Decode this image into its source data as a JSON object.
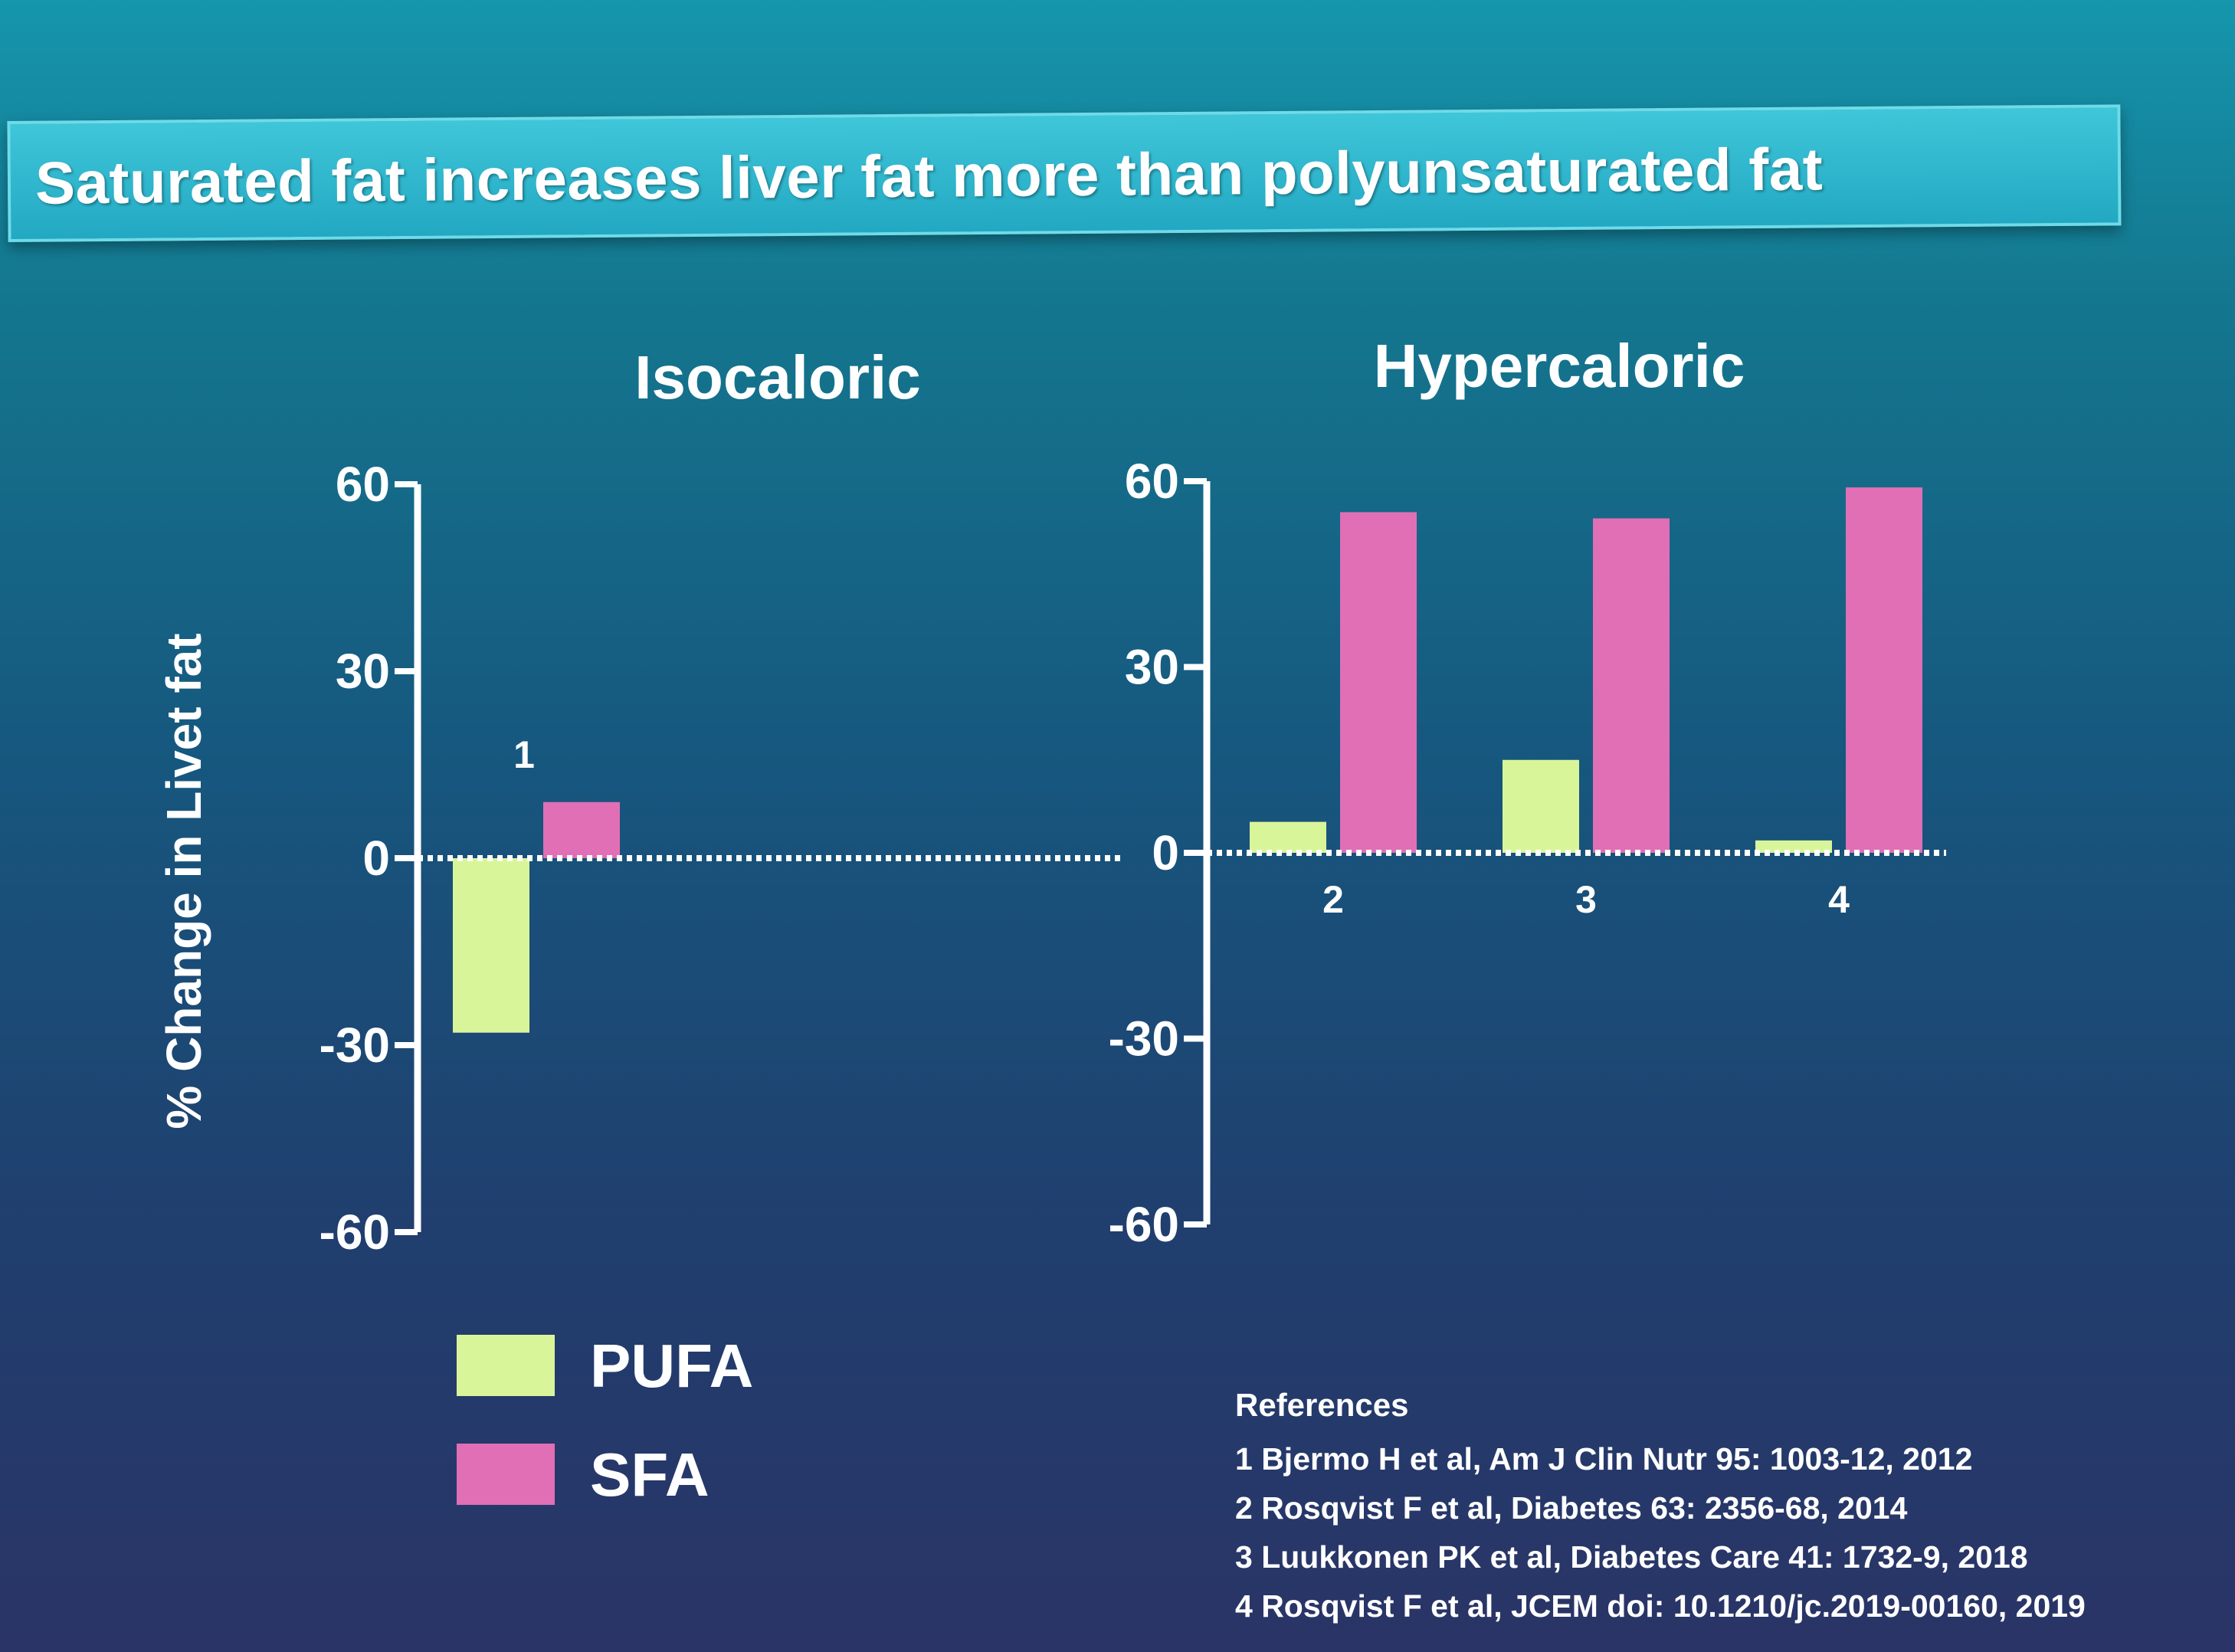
{
  "slide": {
    "title": "Saturated fat increases liver fat more than polyunsaturated fat"
  },
  "chart_data": {
    "type": "bar",
    "ylabel": "% Change in Livet fat",
    "ylim": [
      -60,
      60
    ],
    "yticks": [
      60,
      30,
      0,
      -30,
      -60
    ],
    "series_colors": {
      "PUFA": "#d9f59a",
      "SFA": "#e06fb6"
    },
    "legend": {
      "placement": "bottom-left",
      "entries": [
        {
          "name": "PUFA",
          "color": "#d9f59a"
        },
        {
          "name": "SFA",
          "color": "#e06fb6"
        }
      ]
    },
    "panels": [
      {
        "title": "Isocaloric",
        "categories": [
          "1"
        ],
        "category_label_position": "above",
        "series": [
          {
            "name": "PUFA",
            "values": [
              -28
            ]
          },
          {
            "name": "SFA",
            "values": [
              9
            ]
          }
        ]
      },
      {
        "title": "Hypercaloric",
        "categories": [
          "2",
          "3",
          "4"
        ],
        "category_label_position": "below",
        "series": [
          {
            "name": "PUFA",
            "values": [
              5,
              15,
              2
            ]
          },
          {
            "name": "SFA",
            "values": [
              55,
              54,
              59
            ]
          }
        ]
      }
    ]
  },
  "references": {
    "heading": "References",
    "items": [
      "1 Bjermo H et al, Am J Clin Nutr 95: 1003-12, 2012",
      "2 Rosqvist F et al, Diabetes 63: 2356-68, 2014",
      "3 Luukkonen PK et al, Diabetes Care 41: 1732-9, 2018",
      "4 Rosqvist F et al, JCEM  doi: 10.1210/jc.2019-00160, 2019"
    ]
  }
}
